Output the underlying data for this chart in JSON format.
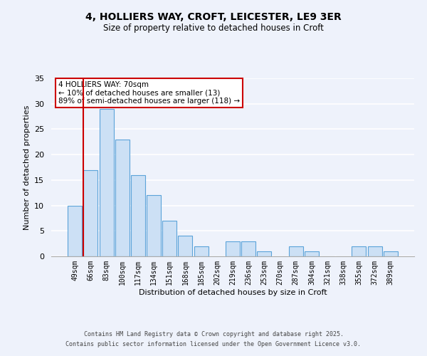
{
  "title": "4, HOLLIERS WAY, CROFT, LEICESTER, LE9 3ER",
  "subtitle": "Size of property relative to detached houses in Croft",
  "xlabel": "Distribution of detached houses by size in Croft",
  "ylabel": "Number of detached properties",
  "bin_labels": [
    "49sqm",
    "66sqm",
    "83sqm",
    "100sqm",
    "117sqm",
    "134sqm",
    "151sqm",
    "168sqm",
    "185sqm",
    "202sqm",
    "219sqm",
    "236sqm",
    "253sqm",
    "270sqm",
    "287sqm",
    "304sqm",
    "321sqm",
    "338sqm",
    "355sqm",
    "372sqm",
    "389sqm"
  ],
  "bar_heights": [
    10,
    17,
    29,
    23,
    16,
    12,
    7,
    4,
    2,
    0,
    3,
    3,
    1,
    0,
    2,
    1,
    0,
    0,
    2,
    2,
    1
  ],
  "bar_color": "#cce0f5",
  "bar_edge_color": "#5ba3d9",
  "highlight_line_color": "#cc0000",
  "annotation_title": "4 HOLLIERS WAY: 70sqm",
  "annotation_line1": "← 10% of detached houses are smaller (13)",
  "annotation_line2": "89% of semi-detached houses are larger (118) →",
  "annotation_box_color": "#ffffff",
  "annotation_box_edge": "#cc0000",
  "ylim": [
    0,
    35
  ],
  "yticks": [
    0,
    5,
    10,
    15,
    20,
    25,
    30,
    35
  ],
  "footer_line1": "Contains HM Land Registry data © Crown copyright and database right 2025.",
  "footer_line2": "Contains public sector information licensed under the Open Government Licence v3.0.",
  "bg_color": "#eef2fb"
}
